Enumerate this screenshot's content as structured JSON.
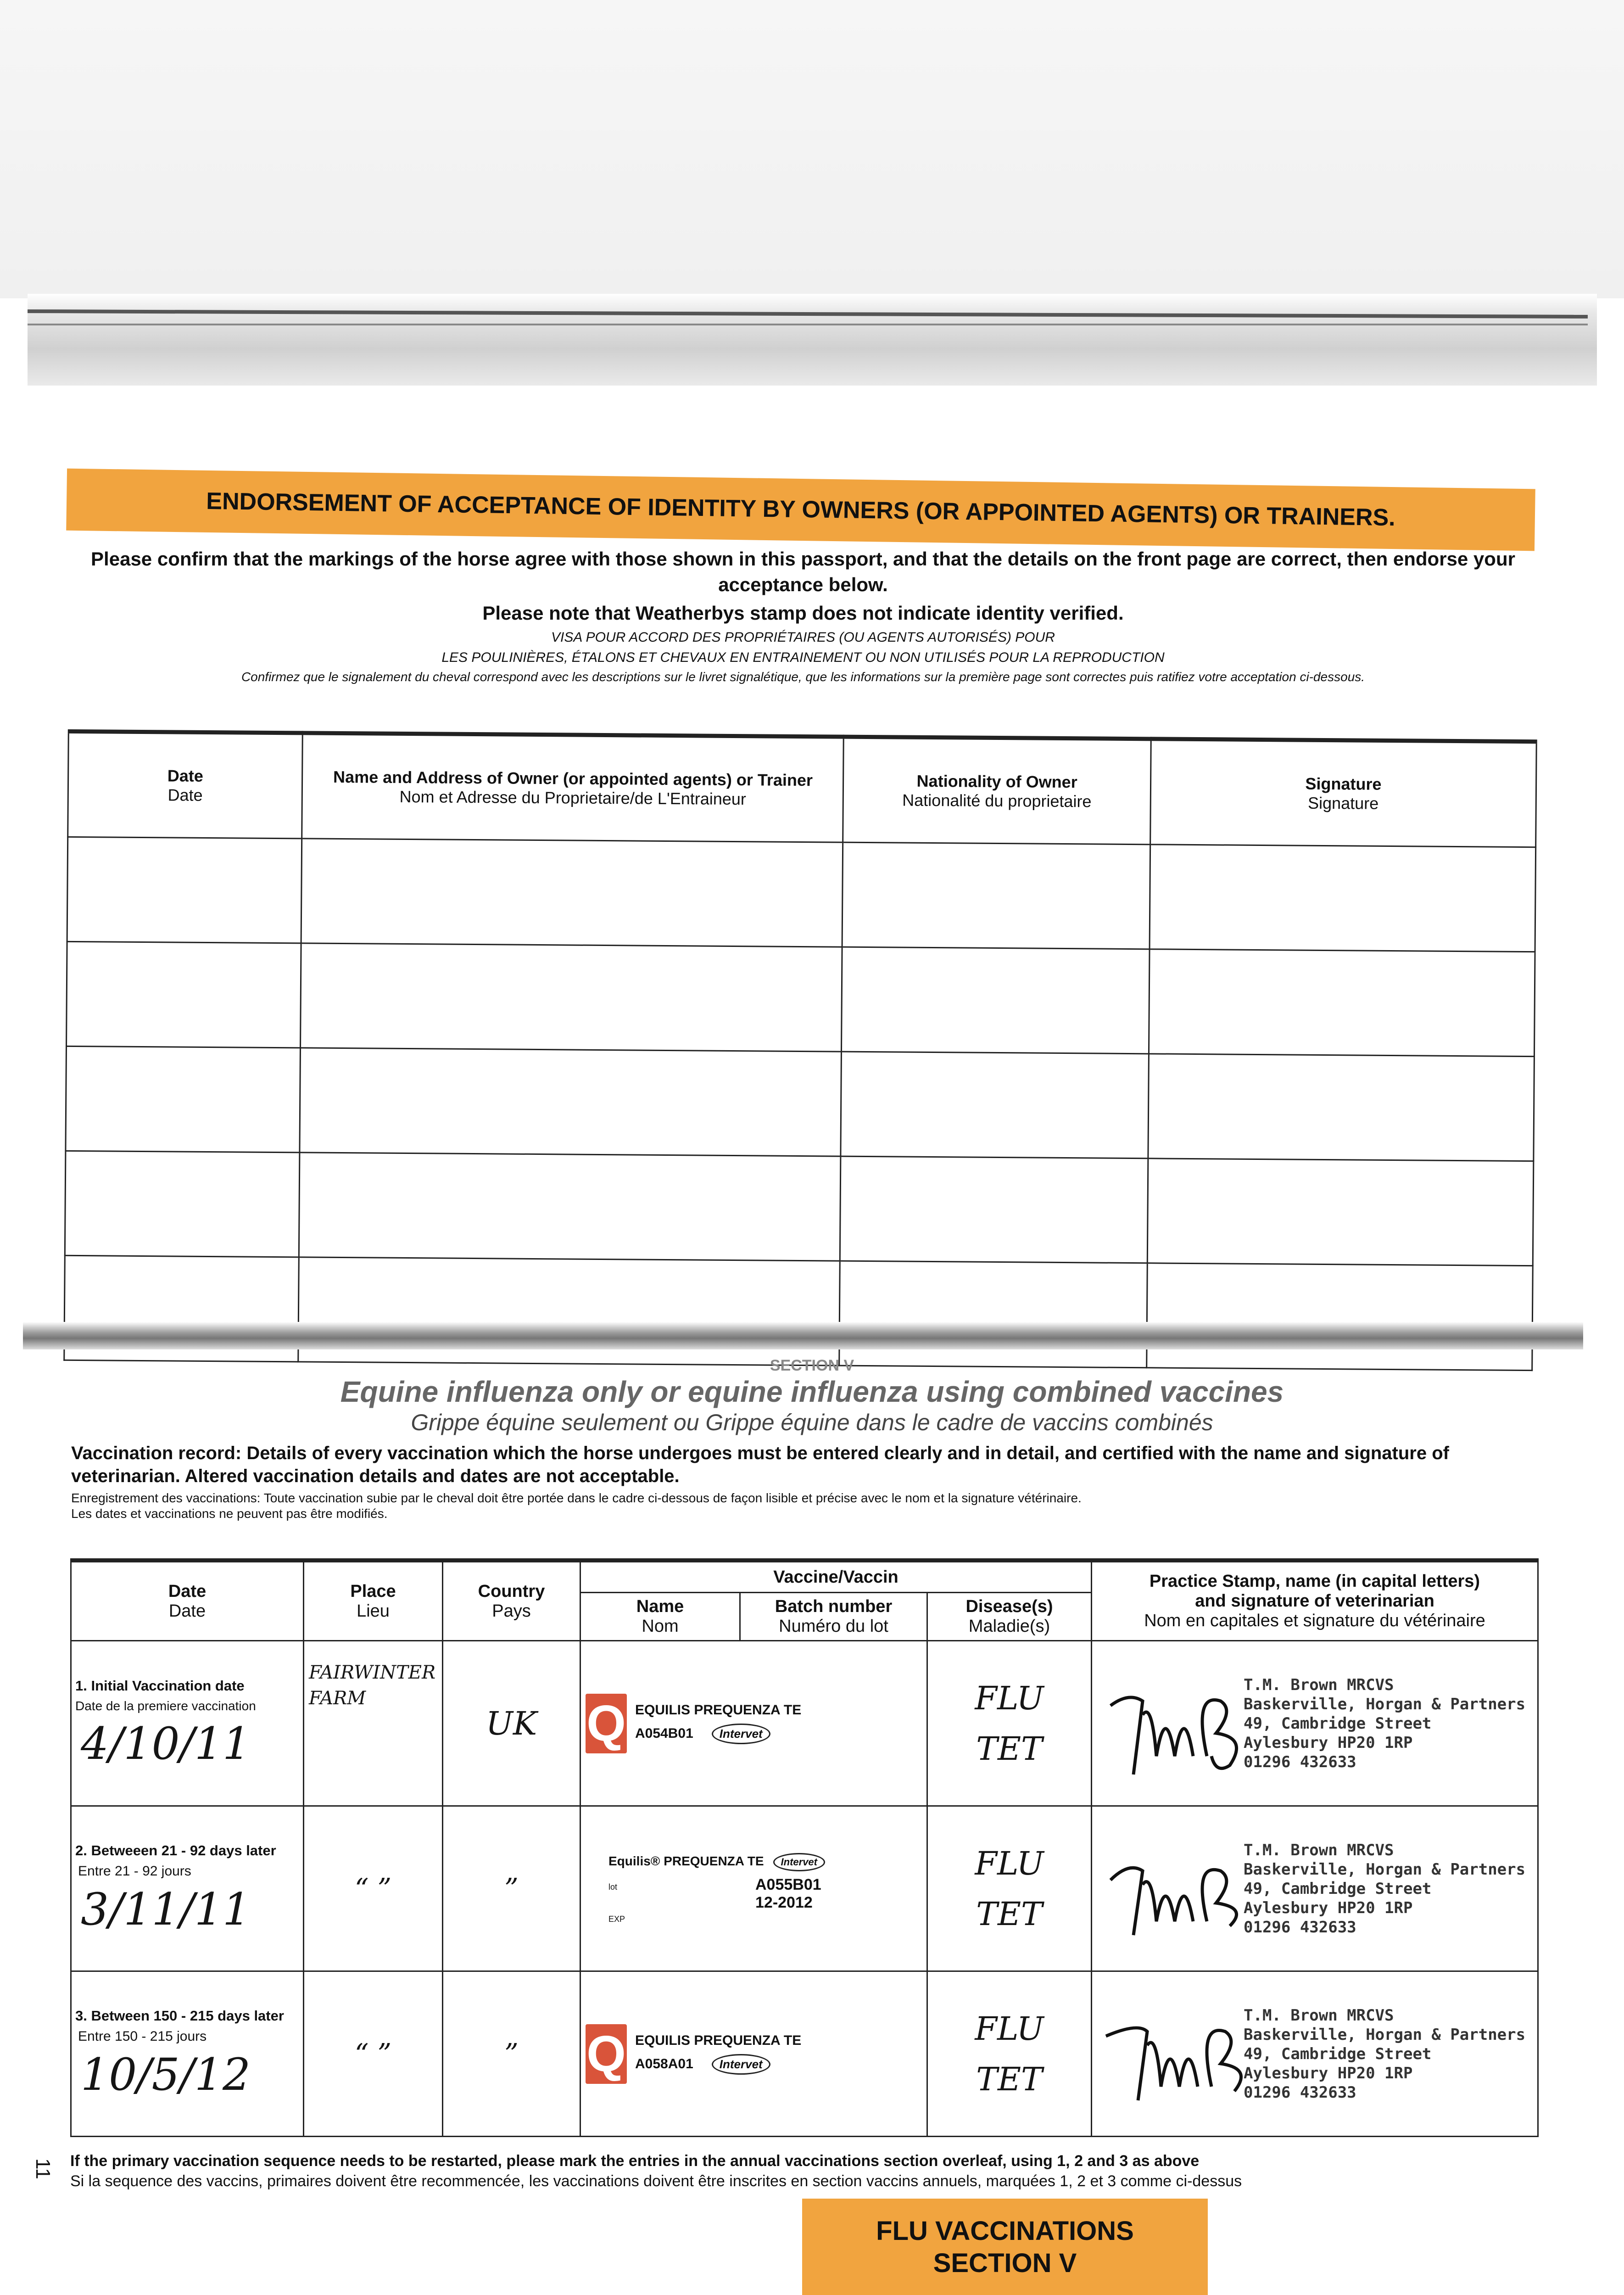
{
  "endorsement": {
    "banner": "ENDORSEMENT OF ACCEPTANCE OF IDENTITY BY OWNERS (OR APPOINTED AGENTS) OR TRAINERS.",
    "instruction": "Please confirm that the markings of the horse agree with those shown in this passport, and that the details on the front page are correct, then endorse your acceptance below.",
    "note": "Please note that Weatherbys stamp does not indicate identity verified.",
    "visa_fr_1": "VISA POUR ACCORD DES PROPRIÉTAIRES (OU AGENTS AUTORISÉS) POUR",
    "visa_fr_2": "LES POULINIÈRES, ÉTALONS ET CHEVAUX EN ENTRAINEMENT OU NON UTILISÉS POUR LA REPRODUCTION",
    "confirm_fr": "Confirmez que le signalement du cheval correspond avec les descriptions sur le livret signalétique, que les informations sur la première page sont correctes puis ratifiez votre acceptation ci-dessous.",
    "columns": [
      {
        "en": "Date",
        "fr": "Date"
      },
      {
        "en": "Name and Address of Owner (or appointed agents) or Trainer",
        "fr": "Nom et Adresse du Proprietaire/de L'Entraineur"
      },
      {
        "en": "Nationality of Owner",
        "fr": "Nationalité du proprietaire"
      },
      {
        "en": "Signature",
        "fr": "Signature"
      }
    ]
  },
  "section": {
    "label": "SECTION V",
    "title": "Equine influenza only or equine influenza using combined vaccines",
    "title_fr": "Grippe équine seulement ou Grippe équine dans le cadre de vaccins combinés",
    "record_text": "Vaccination record: Details of every vaccination which the horse undergoes must be entered clearly and in detail, and certified with the name and signature of veterinarian. Altered vaccination details and dates are not acceptable.",
    "record_fr_1": "Enregistrement des vaccinations: Toute vaccination subie par le cheval doit être portée  dans le cadre ci-dessous de façon lisible et précise avec le nom et la signature vétérinaire.",
    "record_fr_2": "Les dates et vaccinations ne peuvent pas être modifiés."
  },
  "vacc_table": {
    "headers": {
      "date": {
        "en": "Date",
        "fr": "Date"
      },
      "place": {
        "en": "Place",
        "fr": "Lieu"
      },
      "country": {
        "en": "Country",
        "fr": "Pays"
      },
      "vaccine": "Vaccine/Vaccin",
      "name": {
        "en": "Name",
        "fr": "Nom"
      },
      "batch": {
        "en": "Batch number",
        "fr": "Numéro du lot"
      },
      "disease": {
        "en": "Disease(s)",
        "fr": "Maladie(s)"
      },
      "stamp": {
        "en1": "Practice Stamp, name (in capital letters)",
        "en2": "and signature of veterinarian",
        "fr": "Nom en capitales et signature du vétérinaire"
      }
    },
    "rows": [
      {
        "label": "1. Initial Vaccination date",
        "label_fr": "Date de la premiere vaccination",
        "date": "4/10/11",
        "place": "FAIRWINTER FARM",
        "country": "UK",
        "sticker": {
          "name": "EQUILIS PREQUENZA TE",
          "batch": "A054B01",
          "maker": "Intervet"
        },
        "disease_1": "FLU",
        "disease_2": "TET"
      },
      {
        "label": "2. Betweeen 21 - 92 days later",
        "label_fr": "Entre 21 - 92 jours",
        "date": "3/11/11",
        "place": "“ ”",
        "country": "”",
        "sticker": {
          "name": "Equilis® PREQUENZA TE",
          "maker": "Intervet",
          "lot_label": "lot",
          "batch": "A055B01",
          "exp_label": "EXP",
          "expiry": "12-2012"
        },
        "disease_1": "FLU",
        "disease_2": "TET"
      },
      {
        "label": "3. Between 150 - 215  days later",
        "label_fr": "Entre 150 - 215 jours",
        "date": "10/5/12",
        "place": "“ ”",
        "country": "”",
        "sticker": {
          "name": "EQUILIS PREQUENZA TE",
          "batch": "A058A01",
          "maker": "Intervet"
        },
        "disease_1": "FLU",
        "disease_2": "TET"
      }
    ],
    "vet_stamp": [
      "T.M. Brown MRCVS",
      "Baskerville, Horgan & Partners",
      "49, Cambridge Street",
      "Aylesbury HP20 1RP",
      "01296 432633"
    ]
  },
  "footer": {
    "note": "If the primary vaccination sequence needs to be restarted, please mark the entries in the annual vaccinations section overleaf, using 1, 2 and 3 as above",
    "note_fr": "Si la sequence des vaccins, primaires doivent être recommencée, les vaccinations doivent être inscrites en section vaccins annuels, marquées 1, 2 et 3 comme ci-dessus",
    "page_number": "11",
    "tab_line1": "FLU VACCINATIONS",
    "tab_line2": "SECTION V"
  },
  "colors": {
    "banner": "#f1a43f",
    "logo": "#d9543a"
  }
}
